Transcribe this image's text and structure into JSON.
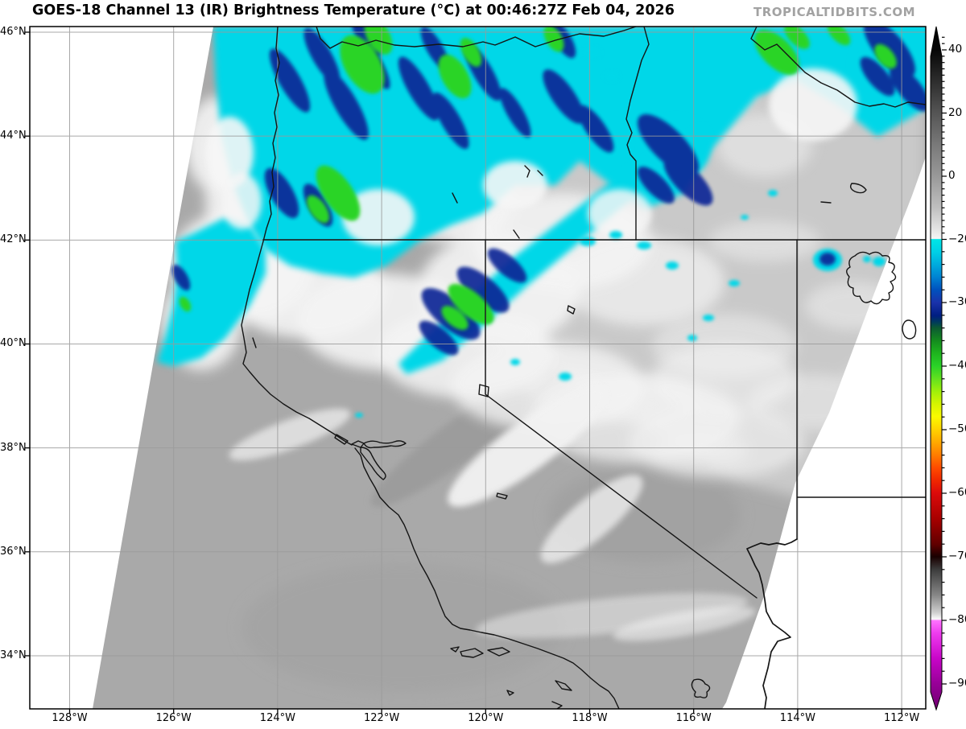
{
  "header": {
    "title": "GOES-18 Channel 13 (IR) Brightness Temperature (°C) at 00:46:27Z Feb 04, 2026",
    "watermark": "TROPICALTIDBITS.COM"
  },
  "map": {
    "longitude_labels": [
      "128°W",
      "126°W",
      "124°W",
      "122°W",
      "120°W",
      "118°W",
      "116°W",
      "114°W",
      "112°W"
    ],
    "latitude_labels": [
      "46°N",
      "44°N",
      "42°N",
      "40°N",
      "38°N",
      "36°N",
      "34°N"
    ]
  },
  "colorbar": {
    "tick_labels": [
      "40",
      "20",
      "0",
      "−20",
      "−30",
      "−40",
      "−50",
      "−60",
      "−70",
      "−80",
      "−90"
    ],
    "palette_accents": {
      "cold_cyan": "#00d7e8",
      "cold_navy": "#0a2896",
      "cold_green": "#2ad428",
      "warm_gray": "#a9a9a9"
    }
  }
}
